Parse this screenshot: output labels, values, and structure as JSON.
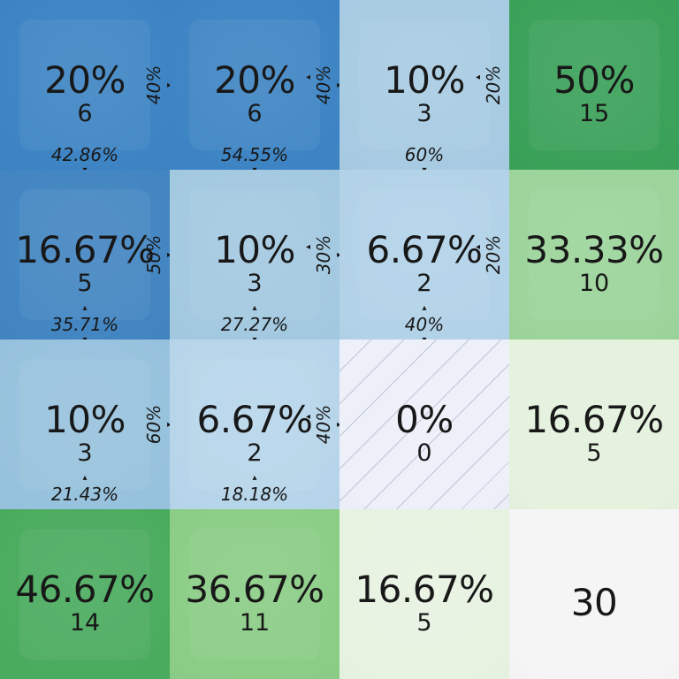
{
  "view": {
    "name": "contingency-mosaic",
    "grid_rows": 4,
    "grid_cols": 4
  },
  "icons": {
    "adjust-up-icon": "▴",
    "adjust-down-icon": "▾",
    "adjust-left-icon": "◂",
    "adjust-right-icon": "▸"
  },
  "colors": {
    "text": "#181818",
    "blue_strong": "#3d84c4",
    "green_strong": "#3aa159",
    "grand_total_bg": "#f4f5f4"
  },
  "matrix": {
    "rows": [
      [
        {
          "value": "20%",
          "count": "6",
          "bg": "#3d84c4",
          "kind": "data",
          "side": {
            "text": "40%",
            "prev": false,
            "next": true
          },
          "bottom": {
            "text": "42.86%",
            "up": false,
            "down": true
          }
        },
        {
          "value": "20%",
          "count": "6",
          "bg": "#3d84c4",
          "kind": "data",
          "side": {
            "text": "40%",
            "prev": true,
            "next": true
          },
          "bottom": {
            "text": "54.55%",
            "up": false,
            "down": true
          }
        },
        {
          "value": "10%",
          "count": "3",
          "bg": "#a7cbe2",
          "kind": "data",
          "side": {
            "text": "20%",
            "prev": true,
            "next": false
          },
          "bottom": {
            "text": "60%",
            "up": false,
            "down": true
          }
        },
        {
          "value": "50%",
          "count": "15",
          "bg": "#3aa159",
          "kind": "total"
        }
      ],
      [
        {
          "value": "16.67%",
          "count": "5",
          "bg": "#4285c1",
          "kind": "data",
          "side": {
            "text": "50%",
            "prev": false,
            "next": true
          },
          "bottom": {
            "text": "35.71%",
            "up": true,
            "down": true
          }
        },
        {
          "value": "10%",
          "count": "3",
          "bg": "#a3c9e1",
          "kind": "data",
          "side": {
            "text": "30%",
            "prev": true,
            "next": true
          },
          "bottom": {
            "text": "27.27%",
            "up": true,
            "down": true
          }
        },
        {
          "value": "6.67%",
          "count": "2",
          "bg": "#b2d2e8",
          "kind": "data",
          "side": {
            "text": "20%",
            "prev": true,
            "next": false
          },
          "bottom": {
            "text": "40%",
            "up": true,
            "down": true
          }
        },
        {
          "value": "33.33%",
          "count": "10",
          "bg": "#9cd49b",
          "kind": "total"
        }
      ],
      [
        {
          "value": "10%",
          "count": "3",
          "bg": "#97c2dd",
          "kind": "data",
          "side": {
            "text": "60%",
            "prev": false,
            "next": true
          },
          "bottom": {
            "text": "21.43%",
            "up": true,
            "down": false
          }
        },
        {
          "value": "6.67%",
          "count": "2",
          "bg": "#b7d5ea",
          "kind": "data",
          "side": {
            "text": "40%",
            "prev": true,
            "next": true
          },
          "bottom": {
            "text": "18.18%",
            "up": true,
            "down": false
          }
        },
        {
          "value": "0%",
          "count": "0",
          "bg": "#edf0f9",
          "kind": "data",
          "hatched": true
        },
        {
          "value": "16.67%",
          "count": "5",
          "bg": "#e4f2de",
          "kind": "total"
        }
      ],
      [
        {
          "value": "46.67%",
          "count": "14",
          "bg": "#4aab5e",
          "kind": "total"
        },
        {
          "value": "36.67%",
          "count": "11",
          "bg": "#8bcd86",
          "kind": "total"
        },
        {
          "value": "16.67%",
          "count": "5",
          "bg": "#e7f3e1",
          "kind": "total"
        },
        {
          "value": "30",
          "count": "",
          "bg": "#f4f5f4",
          "kind": "grand-total"
        }
      ]
    ]
  },
  "chart_data": {
    "type": "heatmap",
    "title": "",
    "description": "4x4 mosaic/contingency grid: 3x3 joint percentages with counts (blue, intensity by value), row-conditional percentages on right edge of each data cell, column-conditional percentages on bottom edge, marginal totals in last column and last row (green), grand total bottom-right. Zero cell is hatched.",
    "cells_joint_percent": [
      [
        20,
        20,
        10
      ],
      [
        16.67,
        10,
        6.67
      ],
      [
        10,
        6.67,
        0
      ]
    ],
    "cells_counts": [
      [
        6,
        6,
        3
      ],
      [
        5,
        3,
        2
      ],
      [
        3,
        2,
        0
      ]
    ],
    "row_conditional_percent": [
      [
        40,
        40,
        20
      ],
      [
        50,
        30,
        20
      ],
      [
        60,
        40,
        null
      ]
    ],
    "column_conditional_percent": [
      [
        42.86,
        54.55,
        60
      ],
      [
        35.71,
        27.27,
        40
      ],
      [
        21.43,
        18.18,
        null
      ]
    ],
    "row_totals_percent": [
      50,
      33.33,
      16.67
    ],
    "row_totals_counts": [
      15,
      10,
      5
    ],
    "column_totals_percent": [
      46.67,
      36.67,
      16.67
    ],
    "column_totals_counts": [
      14,
      11,
      5
    ],
    "grand_total": 30,
    "legend_position": "none",
    "grid": "off",
    "palette": {
      "data_cells": "blue scale",
      "totals": "green scale"
    }
  }
}
